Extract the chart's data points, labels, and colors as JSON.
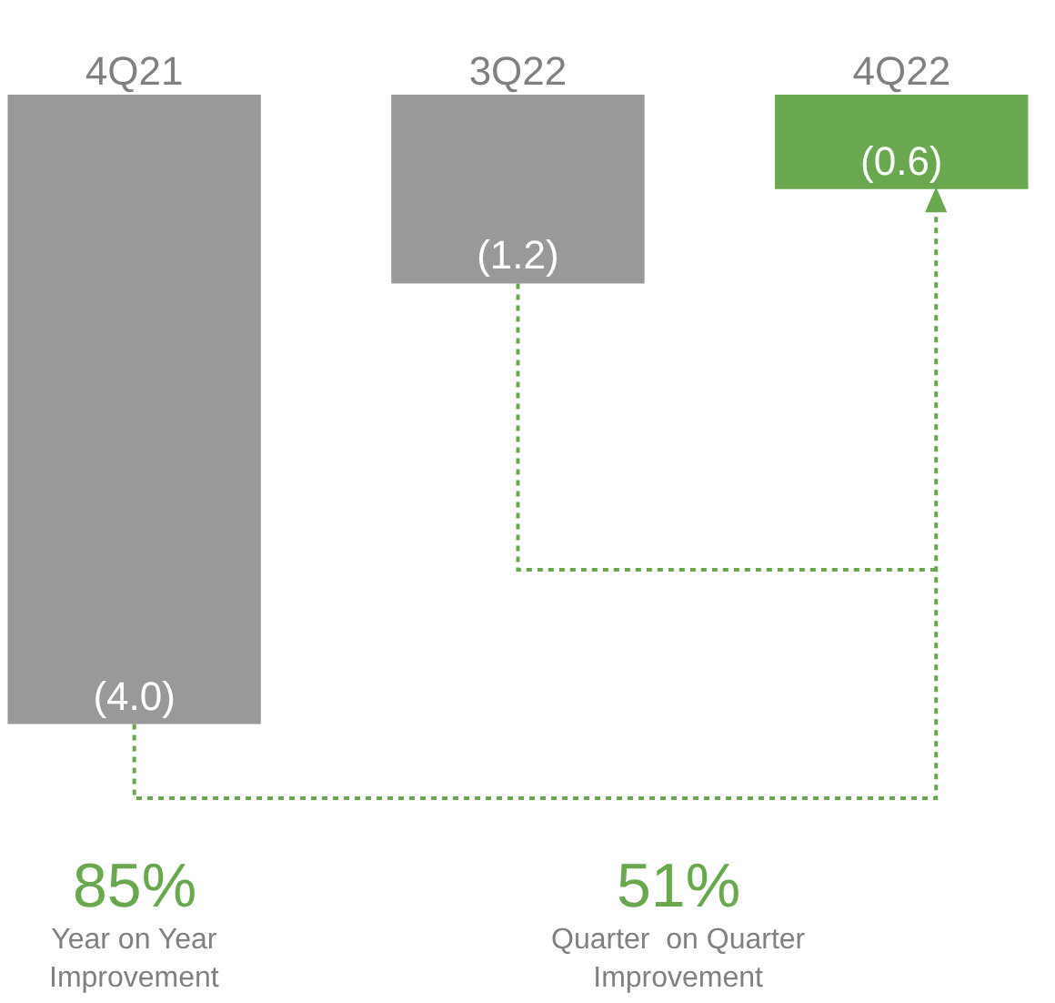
{
  "chart_data": {
    "type": "bar",
    "categories": [
      "4Q21",
      "3Q22",
      "4Q22"
    ],
    "values": [
      -4.0,
      -1.2,
      -0.6
    ],
    "colors": [
      "#999999",
      "#999999",
      "#6aa84f"
    ],
    "value_labels": [
      "(4.0)",
      "(1.2)",
      "(0.6)"
    ],
    "annotations": [
      "85%",
      "Year on Year\nImprovement",
      "51%",
      "Quarter  on Quarter\nImprovement"
    ],
    "legend": false
  }
}
